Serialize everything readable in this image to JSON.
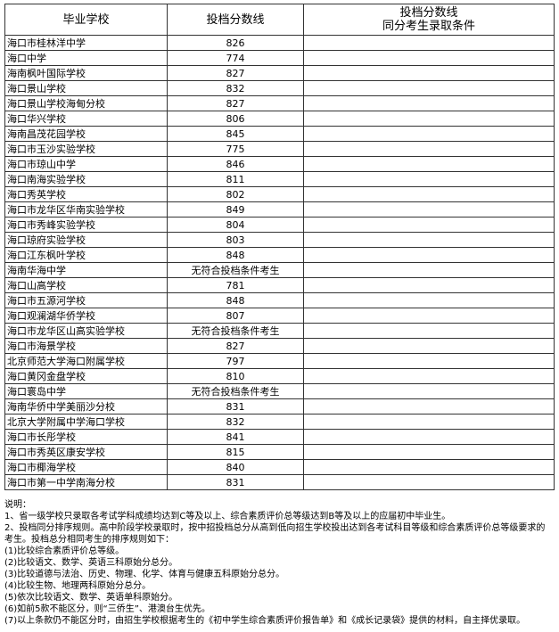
{
  "table": {
    "headers": [
      "毕业学校",
      "投档分数线",
      "投档分数线\n同分考生录取条件"
    ],
    "header3_lines": [
      "投档分数线",
      "同分考生录取条件"
    ],
    "rows": [
      {
        "school": "海口市桂林洋中学",
        "score": "826"
      },
      {
        "school": "海口中学",
        "score": "774"
      },
      {
        "school": "海南枫叶国际学校",
        "score": "827"
      },
      {
        "school": "海口景山学校",
        "score": "832"
      },
      {
        "school": "海口景山学校海甸分校",
        "score": "827"
      },
      {
        "school": "海口华兴学校",
        "score": "806"
      },
      {
        "school": "海南昌茂花园学校",
        "score": "845"
      },
      {
        "school": "海口市玉沙实验学校",
        "score": "775"
      },
      {
        "school": "海口市琼山中学",
        "score": "846"
      },
      {
        "school": "海口南海实验学校",
        "score": "811"
      },
      {
        "school": "海口秀英学校",
        "score": "802"
      },
      {
        "school": "海口市龙华区华南实验学校",
        "score": "849"
      },
      {
        "school": "海口市秀峰实验学校",
        "score": "804"
      },
      {
        "school": "海口琼府实验学校",
        "score": "803"
      },
      {
        "school": "海口江东枫叶学校",
        "score": "848"
      },
      {
        "school": "海南华海中学",
        "score": "无符合投档条件考生"
      },
      {
        "school": "海口山高学校",
        "score": "781"
      },
      {
        "school": "海口市五源河学校",
        "score": "848"
      },
      {
        "school": "海口观澜湖华侨学校",
        "score": "807"
      },
      {
        "school": "海口市龙华区山高实验学校",
        "score": "无符合投档条件考生"
      },
      {
        "school": "海口市海景学校",
        "score": "827"
      },
      {
        "school": "北京师范大学海口附属学校",
        "score": "797"
      },
      {
        "school": "海口黄冈金盘学校",
        "score": "810"
      },
      {
        "school": "海口寰岛中学",
        "score": "无符合投档条件考生"
      },
      {
        "school": "海南华侨中学美丽沙分校",
        "score": "831"
      },
      {
        "school": "北京大学附属中学海口学校",
        "score": "832"
      },
      {
        "school": "海口市长彤学校",
        "score": "841"
      },
      {
        "school": "海口市秀英区康安学校",
        "score": "815"
      },
      {
        "school": "海口市椰海学校",
        "score": "840"
      },
      {
        "school": "海口市第一中学南海分校",
        "score": "831"
      }
    ]
  },
  "notes": [
    "说明：",
    "1、省一级学校只录取各考试学科成绩均达到C等及以上、综合素质评价总等级达到B等及以上的应届初中毕业生。",
    "2、投档同分排序规则。高中阶段学校录取时，按中招投档总分从高到低向招生学校投出达到各考试科目等级和综合素质评价总等级要求的考生。投档总分相同考生的排序规则如下：",
    "(1)比较综合素质评价总等级。",
    "(2)比较语文、数学、英语三科原始分总分。",
    "(3)比较道德与法治、历史、物理、化学、体育与健康五科原始分总分。",
    "(4)比较生物、地理两科原始分总分。",
    "(5)依次比较语文、数学、英语单科原始分。",
    "(6)如前5款不能区分，则“三侨生”、港澳台生优先。",
    "(7)以上条款仍不能区分时，由招生学校根据考生的《初中学生综合素质评价报告单》和《成长记录袋》提供的材料，自主择优录取。"
  ]
}
